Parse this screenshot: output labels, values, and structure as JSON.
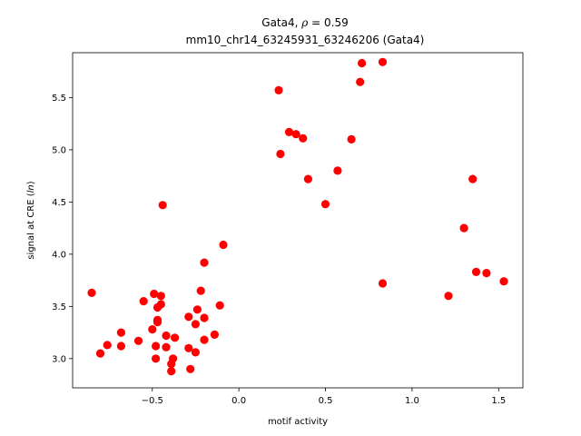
{
  "chart_data": {
    "type": "scatter",
    "title_gene": "Gata4",
    "title_stat": "0.59",
    "subtitle": "mm10_chr14_63245931_63246206 (Gata4)",
    "xlabel": "motif activity",
    "ylabel_prefix": "signal at CRE (",
    "ylabel_italic": "ln",
    "ylabel_suffix": ")",
    "xlim": [
      -0.96,
      1.64
    ],
    "ylim": [
      2.72,
      5.93
    ],
    "xticks": [
      -0.5,
      0.0,
      0.5,
      1.0,
      1.5
    ],
    "xtick_labels": [
      "−0.5",
      "0.0",
      "0.5",
      "1.0",
      "1.5"
    ],
    "yticks": [
      3.0,
      3.5,
      4.0,
      4.5,
      5.0,
      5.5
    ],
    "ytick_labels": [
      "3.0",
      "3.5",
      "4.0",
      "4.5",
      "5.0",
      "5.5"
    ],
    "grid": false,
    "marker_color": "#ff0000",
    "points": [
      [
        -0.85,
        3.63
      ],
      [
        -0.8,
        3.05
      ],
      [
        -0.76,
        3.13
      ],
      [
        -0.68,
        3.25
      ],
      [
        -0.68,
        3.12
      ],
      [
        -0.58,
        3.17
      ],
      [
        -0.55,
        3.55
      ],
      [
        -0.5,
        3.28
      ],
      [
        -0.49,
        3.62
      ],
      [
        -0.48,
        3.0
      ],
      [
        -0.48,
        3.12
      ],
      [
        -0.47,
        3.49
      ],
      [
        -0.47,
        3.37
      ],
      [
        -0.47,
        3.35
      ],
      [
        -0.45,
        3.52
      ],
      [
        -0.45,
        3.6
      ],
      [
        -0.44,
        4.47
      ],
      [
        -0.42,
        3.22
      ],
      [
        -0.42,
        3.11
      ],
      [
        -0.39,
        2.95
      ],
      [
        -0.39,
        2.88
      ],
      [
        -0.38,
        3.0
      ],
      [
        -0.37,
        3.2
      ],
      [
        -0.29,
        3.4
      ],
      [
        -0.29,
        3.1
      ],
      [
        -0.28,
        2.9
      ],
      [
        -0.25,
        3.06
      ],
      [
        -0.25,
        3.33
      ],
      [
        -0.24,
        3.47
      ],
      [
        -0.22,
        3.65
      ],
      [
        -0.2,
        3.92
      ],
      [
        -0.2,
        3.39
      ],
      [
        -0.2,
        3.18
      ],
      [
        -0.14,
        3.23
      ],
      [
        -0.11,
        3.51
      ],
      [
        -0.09,
        4.09
      ],
      [
        0.23,
        5.57
      ],
      [
        0.24,
        4.96
      ],
      [
        0.29,
        5.17
      ],
      [
        0.33,
        5.15
      ],
      [
        0.37,
        5.11
      ],
      [
        0.4,
        4.72
      ],
      [
        0.5,
        4.48
      ],
      [
        0.57,
        4.8
      ],
      [
        0.65,
        5.1
      ],
      [
        0.7,
        5.65
      ],
      [
        0.71,
        5.83
      ],
      [
        0.83,
        3.72
      ],
      [
        0.83,
        5.84
      ],
      [
        1.21,
        3.6
      ],
      [
        1.3,
        4.25
      ],
      [
        1.35,
        4.72
      ],
      [
        1.37,
        3.83
      ],
      [
        1.43,
        3.82
      ],
      [
        1.53,
        3.74
      ]
    ]
  }
}
